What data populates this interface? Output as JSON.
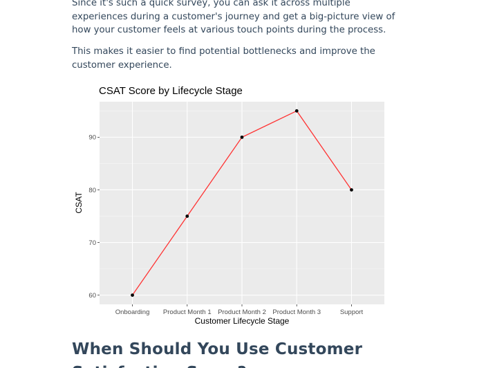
{
  "article": {
    "paragraph_1": "Since it's such a quick survey, you can ask it across multiple experiences during a customer's journey and get a big-picture view of how your customer feels at various touch points during the process.",
    "paragraph_2": "This makes it easier to find potential bottlenecks and improve the customer experience.",
    "section_heading": "When Should You Use Customer Satisfaction Score?"
  },
  "chart_data": {
    "type": "line",
    "title": "CSAT Score by Lifecycle Stage",
    "xlabel": "Customer Lifecycle Stage",
    "ylabel": "CSAT",
    "categories": [
      "Onboarding",
      "Product Month 1",
      "Product Month 2",
      "Product Month 3",
      "Support"
    ],
    "series": [
      {
        "values": [
          60,
          75,
          90,
          95,
          80
        ]
      }
    ],
    "ylim": [
      58.25,
      96.75
    ],
    "yticks": [
      60,
      70,
      80,
      90
    ],
    "grid": true,
    "line_color": "#ff3333",
    "point_color": "#000000",
    "panel_background": "#ebebeb"
  }
}
